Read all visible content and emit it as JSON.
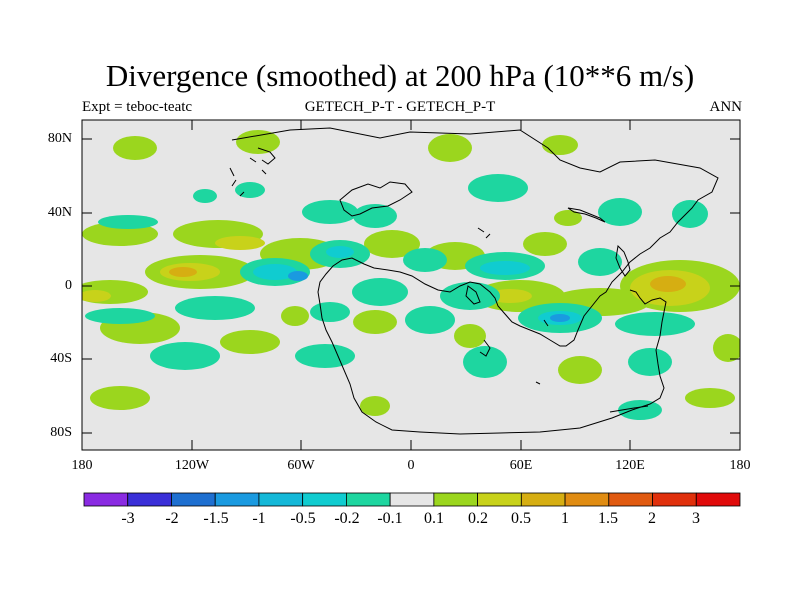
{
  "title": "Divergence (smoothed) at 200 hPa (10**6 m/s)",
  "left_subtitle": "Expt = teboc-teatc",
  "center_subtitle": "GETECH_P-T - GETECH_P-T",
  "right_subtitle": "ANN",
  "x_ticks": [
    "180",
    "120W",
    "60W",
    "0",
    "60E",
    "120E",
    "180"
  ],
  "y_ticks": [
    "80N",
    "40N",
    "0",
    "40S",
    "80S"
  ],
  "colorbar": {
    "labels": [
      "-3",
      "-2",
      "-1.5",
      "-1",
      "-0.5",
      "-0.2",
      "-0.1",
      "0.1",
      "0.2",
      "0.5",
      "1",
      "1.5",
      "2",
      "3"
    ],
    "colors": [
      "#8a2be2",
      "#3a2fd8",
      "#1e6fd0",
      "#1a9ae0",
      "#14b8d8",
      "#10ccd0",
      "#1ed6a0",
      "#e6e6e6",
      "#9bd61e",
      "#c8d21a",
      "#d6ae12",
      "#e08c12",
      "#e05a10",
      "#e0300c",
      "#e00a0a"
    ]
  },
  "map": {
    "background": "#e6e6e6",
    "palette": {
      "neg_01": "#1ed6a0",
      "neg_02": "#10ccd0",
      "neg_05": "#1a9ae0",
      "pos_01": "#9bd61e",
      "pos_02": "#c8d21a",
      "pos_05": "#d6ae12"
    }
  }
}
